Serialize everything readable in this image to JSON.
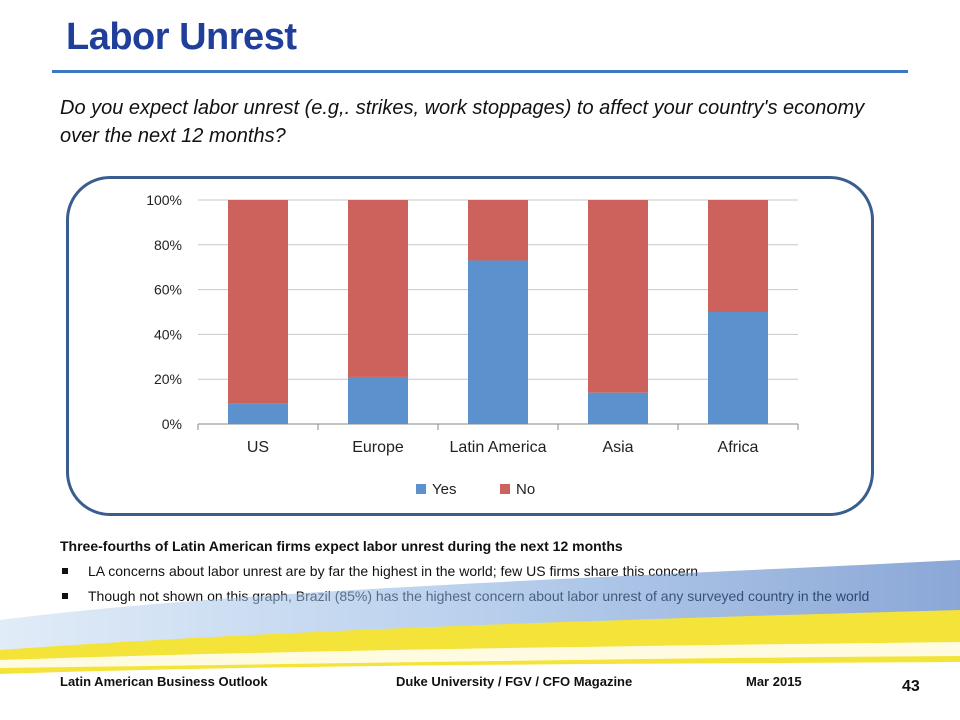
{
  "slide": {
    "title": "Labor Unrest",
    "question": "Do you expect labor unrest (e.g,. strikes, work stoppages) to affect your country's economy over the next 12 months?",
    "headline": "Three-fourths of Latin American firms expect labor unrest during the next 12 months",
    "bullets": [
      "LA concerns about labor unrest are by far the highest in the world; few US firms share this concern",
      "Though not shown on this graph, Brazil (85%) has the highest concern about labor unrest of any surveyed country in the world"
    ],
    "footer_left": "Latin American Business Outlook",
    "footer_center": "Duke University / FGV / CFO Magazine",
    "footer_right": "Mar 2015",
    "page_number": "43"
  },
  "chart_data": {
    "type": "bar",
    "stacked": true,
    "categories": [
      "US",
      "Europe",
      "Latin America",
      "Asia",
      "Africa"
    ],
    "series": [
      {
        "name": "Yes",
        "values": [
          9,
          21,
          73,
          14,
          50
        ],
        "color": "#5b92cd"
      },
      {
        "name": "No",
        "values": [
          91,
          79,
          27,
          86,
          50
        ],
        "color": "#cd625d"
      }
    ],
    "y_ticks": [
      "0%",
      "20%",
      "40%",
      "60%",
      "80%",
      "100%"
    ],
    "ylim": [
      0,
      100
    ],
    "grid": true,
    "legend_position": "bottom"
  }
}
